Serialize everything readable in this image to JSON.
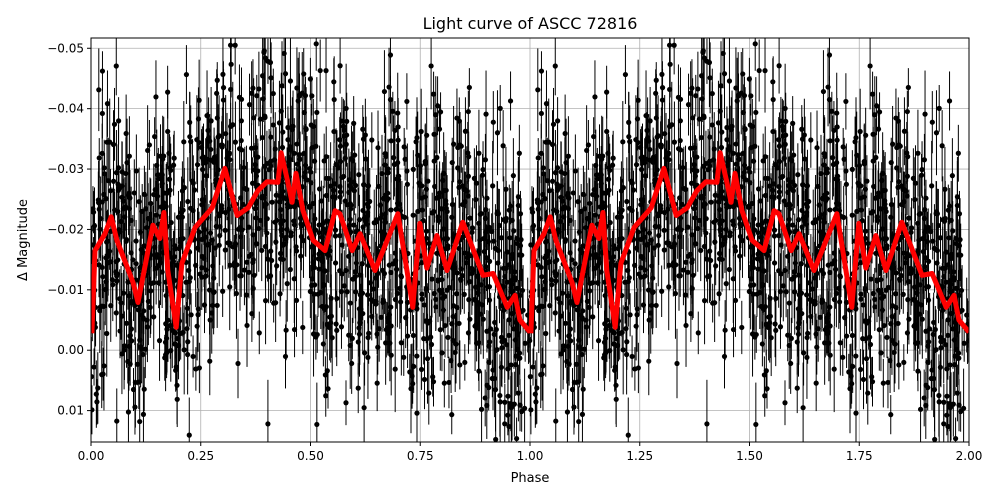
{
  "chart_data": {
    "type": "scatter",
    "title": "Light curve of ASCC 72816",
    "xlabel": "Phase",
    "ylabel": "Δ Magnitude",
    "xlim": [
      0,
      2
    ],
    "ylim": [
      0.0152,
      -0.0517
    ],
    "y_inverted": true,
    "grid": true,
    "xticks": [
      "0.00",
      "0.25",
      "0.50",
      "0.75",
      "1.00",
      "1.25",
      "1.50",
      "1.75",
      "2.00"
    ],
    "yticks": [
      "−0.05",
      "−0.04",
      "−0.03",
      "−0.02",
      "−0.01",
      "0.00",
      "0.01"
    ],
    "ytick_values": [
      -0.05,
      -0.04,
      -0.03,
      -0.02,
      -0.01,
      0.0,
      0.01
    ],
    "xtick_values": [
      0,
      0.25,
      0.5,
      0.75,
      1,
      1.25,
      1.5,
      1.75,
      2
    ],
    "observations": {
      "marker": "errorbar-dot",
      "color": "#000000",
      "typical_scatter": 0.012,
      "typical_error": 0.005,
      "repeated_each_period": true
    },
    "smoothed_curve": {
      "color": "#ff0000",
      "repeated_each_period": true,
      "x": [
        0.002,
        0.009,
        0.032,
        0.046,
        0.059,
        0.096,
        0.107,
        0.141,
        0.157,
        0.166,
        0.175,
        0.194,
        0.207,
        0.237,
        0.276,
        0.305,
        0.333,
        0.358,
        0.38,
        0.401,
        0.426,
        0.433,
        0.446,
        0.458,
        0.467,
        0.483,
        0.506,
        0.533,
        0.556,
        0.567,
        0.595,
        0.613,
        0.647,
        0.699,
        0.733,
        0.749,
        0.765,
        0.788,
        0.811,
        0.847,
        0.893,
        0.916,
        0.948,
        0.966,
        0.977,
        1.0
      ],
      "y": [
        -0.0028,
        -0.0165,
        -0.0193,
        -0.0221,
        -0.0182,
        -0.0112,
        -0.0079,
        -0.0207,
        -0.0185,
        -0.0228,
        -0.0132,
        -0.0038,
        -0.0144,
        -0.0203,
        -0.0236,
        -0.0301,
        -0.0223,
        -0.0236,
        -0.0264,
        -0.0279,
        -0.0278,
        -0.0327,
        -0.0286,
        -0.0245,
        -0.0293,
        -0.0231,
        -0.0182,
        -0.0165,
        -0.0231,
        -0.0226,
        -0.0165,
        -0.0193,
        -0.0132,
        -0.0226,
        -0.0071,
        -0.021,
        -0.0136,
        -0.019,
        -0.0132,
        -0.0212,
        -0.0124,
        -0.0127,
        -0.0071,
        -0.0091,
        -0.005,
        -0.003
      ]
    }
  }
}
